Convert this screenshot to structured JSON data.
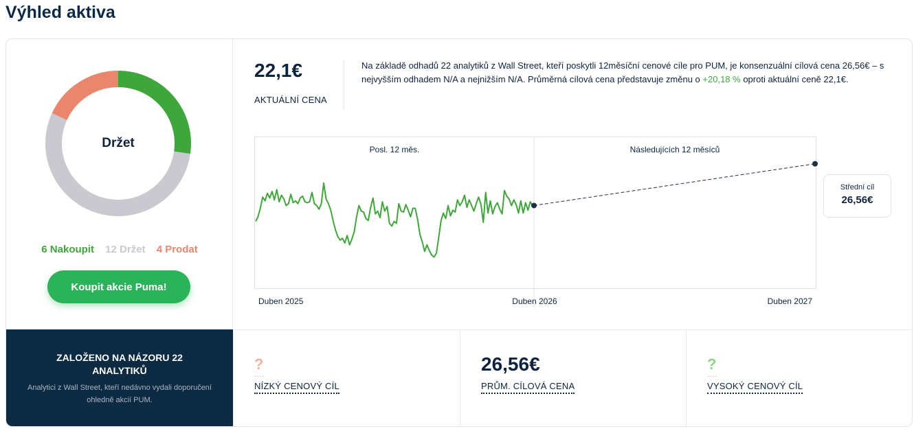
{
  "page": {
    "title": "Výhled aktiva"
  },
  "rating": {
    "center_label": "Držet",
    "buy_label": "6 Nakoupit",
    "hold_label": "12 Držet",
    "sell_label": "4 Prodat",
    "counts": {
      "buy": 6,
      "hold": 12,
      "sell": 4
    },
    "colors": {
      "buy": "#3ea63a",
      "hold": "#c9c9cf",
      "sell": "#e9866b"
    },
    "cta_label": "Koupit akcie Puma!"
  },
  "price": {
    "current": "22,1€",
    "current_label": "AKTUÁLNÍ CENA",
    "summary_before": "Na základě odhadů 22 analytiků z Wall Street, kteří poskytli 12měsíční cenové cíle pro PUM, je konsenzuální cílová cena 26,56€ – s nejvyšším odhadem N/A a nejnižším N/A. Průměrná cílová cena představuje změnu o ",
    "summary_change": "+20,18 %",
    "summary_after": " oproti aktuální ceně 22,1€."
  },
  "target_box": {
    "label": "Střední cíl",
    "value": "26,56€"
  },
  "chart_data": {
    "type": "line",
    "title": "",
    "sections": [
      "Posl. 12 měs.",
      "Následujících 12 měsíců"
    ],
    "x_labels": [
      "Duben 2025",
      "Duben 2026",
      "Duben 2027"
    ],
    "series": [
      {
        "values": [
          20.4,
          20.9,
          21.8,
          23.0,
          22.6,
          23.4,
          22.9,
          23.6,
          22.7,
          23.8,
          22.5,
          23.2,
          22.8,
          22.1,
          22.3,
          23.3,
          22.4,
          22.6,
          22.3,
          22.9,
          23.1,
          22.5,
          22.4,
          22.5,
          23.5,
          22.3,
          22.1,
          21.7,
          22.3,
          24.5,
          22.8,
          22.3,
          21.6,
          20.5,
          19.5,
          18.8,
          18.4,
          18.6,
          18.1,
          18.9,
          17.9,
          18.5,
          19.3,
          20.9,
          22.1,
          21.5,
          21.4,
          20.7,
          20.5,
          21.9,
          22.9,
          21.2,
          21.5,
          20.8,
          22.5,
          21.5,
          22.0,
          20.2,
          19.9,
          20.4,
          20.2,
          22.3,
          21.5,
          21.4,
          22.2,
          21.6,
          20.9,
          21.8,
          21.8,
          20.6,
          19.0,
          18.2,
          17.2,
          17.9,
          17.3,
          16.8,
          16.6,
          17.0,
          18.7,
          20.5,
          21.3,
          20.7,
          22.1,
          21.0,
          21.6,
          21.4,
          22.7,
          22.1,
          22.5,
          23.2,
          21.9,
          22.7,
          22.1,
          21.5,
          22.3,
          23.0,
          22.2,
          20.3,
          23.5,
          21.3,
          22.6,
          21.2,
          22.0,
          22.4,
          21.7,
          21.2,
          23.7,
          23.1,
          22.8,
          22.1,
          22.7,
          22.2,
          21.3,
          22.6,
          21.3,
          22.4,
          21.6,
          22.5,
          22.1
        ]
      }
    ],
    "current_price": 22.1,
    "mean_target": 26.56,
    "mean_target_label": "Střední cíl",
    "colors": {
      "history": "#3ea63a",
      "projection": "#1b2f45"
    }
  },
  "bottom": {
    "based_on_title": "ZALOŽENO NA NÁZORU 22 ANALYTIKŮ",
    "based_on_sub": "Analytici z Wall Street, kteří nedávno vydali doporučení ohledně akcií PUM.",
    "low": {
      "value": "?",
      "label": "NÍZKÝ CENOVÝ CÍL"
    },
    "avg": {
      "value": "26,56€",
      "label": "PRŮM. CÍLOVÁ CENA"
    },
    "high": {
      "value": "?",
      "label": "VYSOKÝ CENOVÝ CÍL"
    }
  }
}
